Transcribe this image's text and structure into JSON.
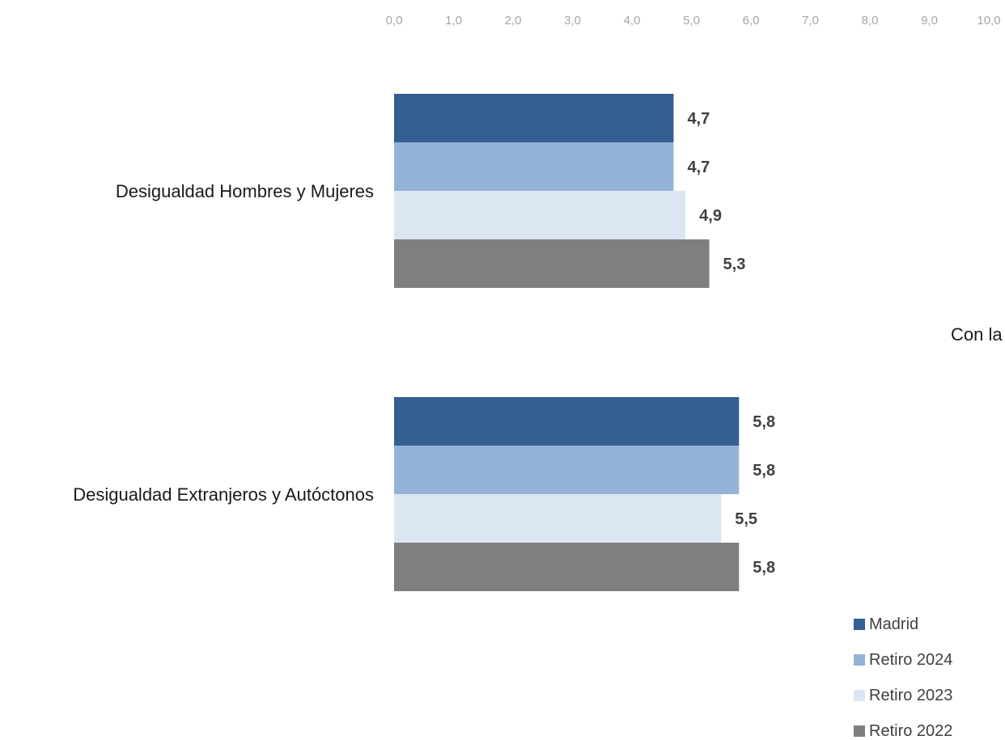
{
  "side_text": "Con la",
  "chart_data": {
    "type": "bar",
    "orientation": "horizontal",
    "title": "",
    "xlabel": "",
    "ylabel": "",
    "xlim": [
      0,
      10
    ],
    "tick_labels": [
      "0,0",
      "1,0",
      "2,0",
      "3,0",
      "4,0",
      "5,0",
      "6,0",
      "7,0",
      "8,0",
      "9,0",
      "10,0"
    ],
    "tick_values": [
      0,
      1,
      2,
      3,
      4,
      5,
      6,
      7,
      8,
      9,
      10
    ],
    "axis_position": "top",
    "grid": false,
    "legend_position": "bottom-right",
    "categories": [
      "Desigualdad Hombres y Mujeres",
      "Desigualdad Extranjeros y Autóctonos"
    ],
    "series": [
      {
        "name": "Madrid",
        "color": "#365F91",
        "values": [
          4.7,
          5.8
        ],
        "labels": [
          "4,7",
          "5,8"
        ]
      },
      {
        "name": "Retiro 2024",
        "color": "#95B3D7",
        "values": [
          4.7,
          5.8
        ],
        "labels": [
          "4,7",
          "5,8"
        ]
      },
      {
        "name": "Retiro 2023",
        "color": "#DCE6F2",
        "values": [
          4.9,
          5.5
        ],
        "labels": [
          "4,9",
          "5,5"
        ]
      },
      {
        "name": "Retiro 2022",
        "color": "#7F7F7F",
        "values": [
          5.3,
          5.8
        ],
        "labels": [
          "5,3",
          "5,8"
        ]
      }
    ]
  }
}
